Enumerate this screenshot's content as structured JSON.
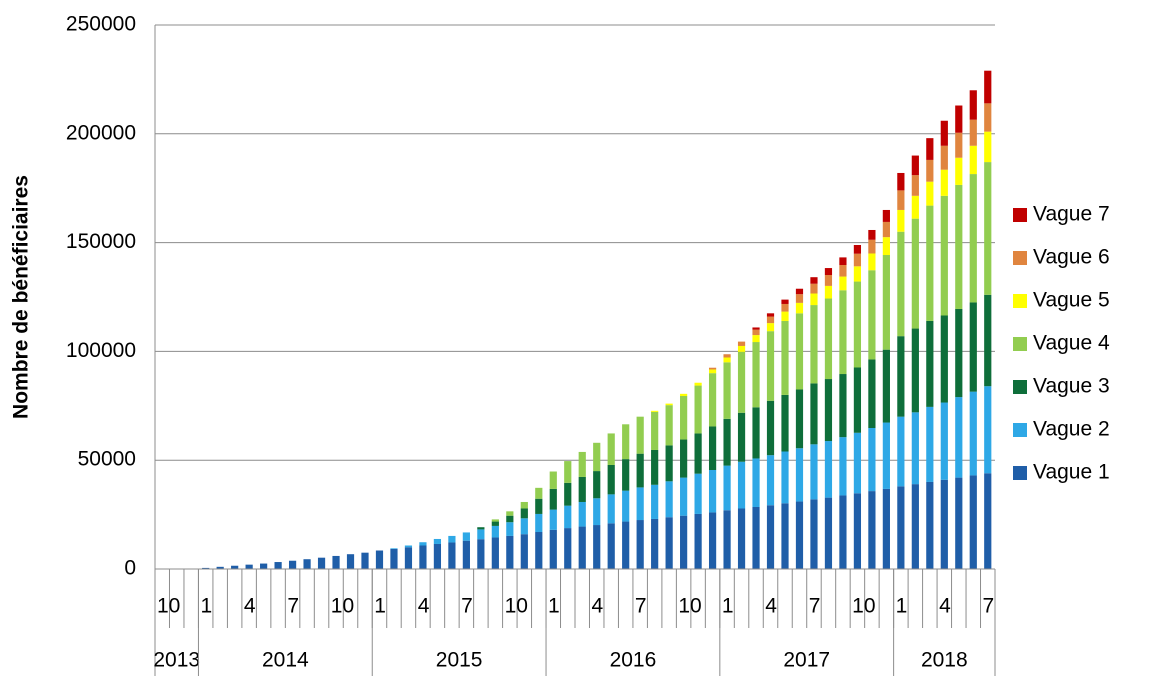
{
  "chart_data": {
    "type": "stacked_bar",
    "y_axis_label": "Nombre de bénéficiaires",
    "categories": [
      "10",
      null,
      null,
      "1",
      null,
      null,
      "4",
      null,
      null,
      "7",
      null,
      null,
      "10",
      null,
      null,
      "1",
      null,
      null,
      "4",
      null,
      null,
      "7",
      null,
      null,
      "10",
      null,
      null,
      "1",
      null,
      null,
      "4",
      null,
      null,
      "7",
      null,
      null,
      "10",
      null,
      null,
      "1",
      null,
      null,
      "4",
      null,
      null,
      "7",
      null,
      null,
      "10",
      null,
      null,
      "1",
      null,
      null,
      "4",
      null,
      null,
      "7"
    ],
    "category_groups": [
      {
        "label": "2013",
        "size": 3
      },
      {
        "label": "2014",
        "size": 12
      },
      {
        "label": "2015",
        "size": 12
      },
      {
        "label": "2016",
        "size": 12
      },
      {
        "label": "2017",
        "size": 12
      },
      {
        "label": "2018",
        "size": 7
      }
    ],
    "series": [
      {
        "name": "Vague 1",
        "color": "#1f5ea8",
        "values": [
          0,
          0,
          0,
          500,
          1000,
          1500,
          2000,
          2500,
          3200,
          3800,
          4500,
          5200,
          6000,
          6800,
          7500,
          8500,
          9200,
          10000,
          10800,
          11500,
          12200,
          13000,
          13700,
          14500,
          15200,
          16000,
          17000,
          18000,
          18800,
          19500,
          20200,
          21000,
          21800,
          22500,
          23000,
          23800,
          24500,
          25300,
          26000,
          27000,
          27800,
          28500,
          29300,
          30200,
          31000,
          32000,
          32800,
          33800,
          34800,
          35800,
          36800,
          38000,
          39000,
          40000,
          41000,
          42000,
          43000,
          44000
        ]
      },
      {
        "name": "Vague 2",
        "color": "#2ea8e6",
        "values": [
          0,
          0,
          0,
          0,
          0,
          0,
          0,
          0,
          0,
          0,
          0,
          0,
          0,
          0,
          0,
          0,
          300,
          800,
          1500,
          2300,
          3000,
          3800,
          4500,
          5300,
          6300,
          7300,
          8300,
          9300,
          10300,
          11300,
          12300,
          13300,
          14200,
          15000,
          15700,
          16500,
          17500,
          18500,
          19500,
          20500,
          21500,
          22300,
          23000,
          23800,
          24500,
          25300,
          26000,
          26800,
          27800,
          29000,
          30500,
          32000,
          33000,
          34500,
          35500,
          37000,
          38500,
          40000
        ]
      },
      {
        "name": "Vague 3",
        "color": "#0e6e3a",
        "values": [
          0,
          0,
          0,
          0,
          0,
          0,
          0,
          0,
          0,
          0,
          0,
          0,
          0,
          0,
          0,
          0,
          0,
          0,
          0,
          0,
          0,
          0,
          1000,
          2000,
          3000,
          4500,
          7000,
          9500,
          10500,
          11500,
          12500,
          13500,
          14500,
          15500,
          16000,
          16500,
          17500,
          18500,
          20000,
          21500,
          22500,
          23500,
          25000,
          26000,
          27000,
          28000,
          28500,
          29000,
          30000,
          31500,
          33500,
          37000,
          38500,
          39500,
          40000,
          40500,
          41000,
          42000
        ]
      },
      {
        "name": "Vague 4",
        "color": "#92cd50",
        "values": [
          0,
          0,
          0,
          0,
          0,
          0,
          0,
          0,
          0,
          0,
          0,
          0,
          0,
          0,
          0,
          0,
          0,
          0,
          0,
          0,
          0,
          0,
          0,
          1000,
          2000,
          3000,
          5000,
          8000,
          10000,
          11500,
          13000,
          14500,
          16000,
          17000,
          17500,
          18500,
          20000,
          22000,
          24500,
          26000,
          28000,
          30000,
          32000,
          34000,
          35000,
          36000,
          37000,
          38500,
          39500,
          41000,
          43500,
          48000,
          50500,
          53000,
          55000,
          57000,
          59000,
          61000
        ]
      },
      {
        "name": "Vague 5",
        "color": "#ffff00",
        "values": [
          0,
          0,
          0,
          0,
          0,
          0,
          0,
          0,
          0,
          0,
          0,
          0,
          0,
          0,
          0,
          0,
          0,
          0,
          0,
          0,
          0,
          0,
          0,
          0,
          0,
          0,
          0,
          0,
          0,
          0,
          0,
          0,
          0,
          0,
          500,
          700,
          1000,
          1300,
          1700,
          2200,
          2700,
          3200,
          3700,
          4300,
          4800,
          5300,
          5800,
          6300,
          7000,
          7700,
          8200,
          10000,
          10500,
          11000,
          12000,
          12500,
          13000,
          14000
        ]
      },
      {
        "name": "Vague 6",
        "color": "#e0853f",
        "values": [
          0,
          0,
          0,
          0,
          0,
          0,
          0,
          0,
          0,
          0,
          0,
          0,
          0,
          0,
          0,
          0,
          0,
          0,
          0,
          0,
          0,
          0,
          0,
          0,
          0,
          0,
          0,
          0,
          0,
          0,
          0,
          0,
          0,
          0,
          0,
          0,
          0,
          0,
          800,
          1500,
          2000,
          2500,
          3000,
          3500,
          4000,
          4500,
          5000,
          5300,
          5800,
          6300,
          7000,
          9000,
          9500,
          10000,
          11000,
          11500,
          12000,
          13000
        ]
      },
      {
        "name": "Vague 7",
        "color": "#c00000",
        "values": [
          0,
          0,
          0,
          0,
          0,
          0,
          0,
          0,
          0,
          0,
          0,
          0,
          0,
          0,
          0,
          0,
          0,
          0,
          0,
          0,
          0,
          0,
          0,
          0,
          0,
          0,
          0,
          0,
          0,
          0,
          0,
          0,
          0,
          0,
          0,
          0,
          0,
          0,
          0,
          0,
          0,
          1000,
          1500,
          2000,
          2500,
          3000,
          3200,
          3500,
          4000,
          4500,
          5500,
          8000,
          9000,
          10000,
          11500,
          12500,
          13500,
          15000
        ]
      }
    ],
    "ylim": [
      0,
      250000
    ],
    "yticks": [
      0,
      50000,
      100000,
      150000,
      200000,
      250000
    ],
    "grid": true
  }
}
